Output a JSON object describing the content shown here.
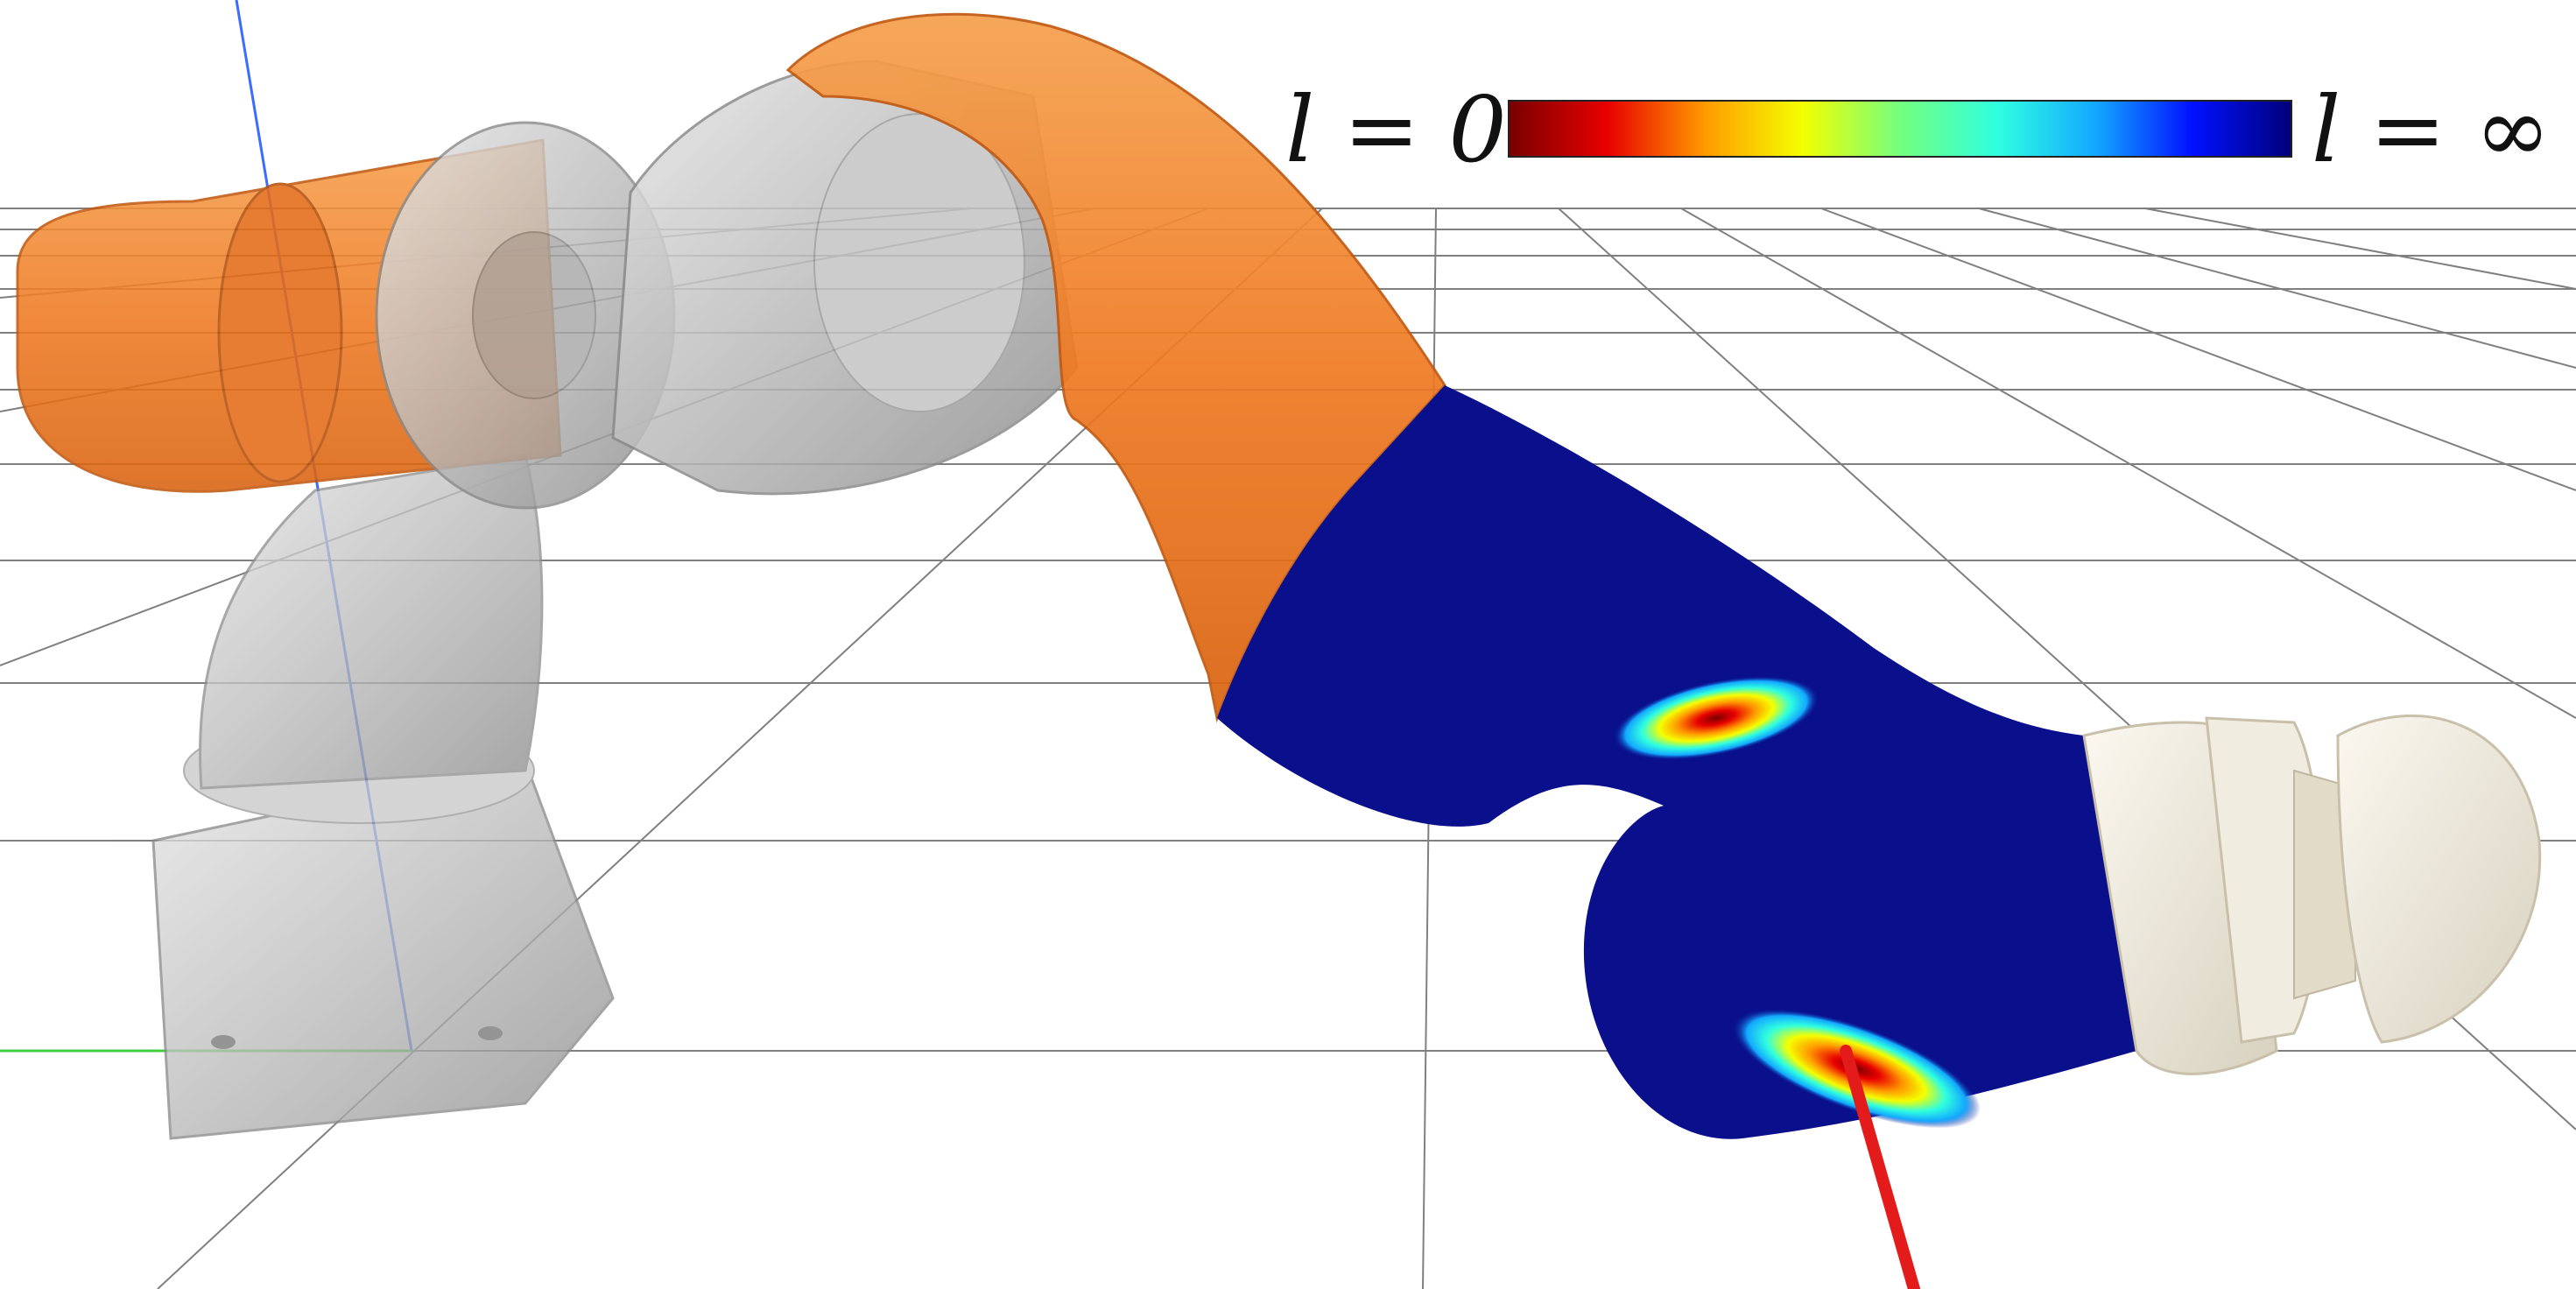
{
  "legend": {
    "min_label": "l = 0",
    "max_label": "l = ∞",
    "colormap": [
      "#7a0000",
      "#e80000",
      "#ff9a00",
      "#f4ff00",
      "#74ff7e",
      "#2fffe0",
      "#13a8ff",
      "#0010ff",
      "#00007a"
    ]
  },
  "colors": {
    "robot_orange": "#ef7a22",
    "robot_grey": "#a8a8a8",
    "robot_cream": "#ece6d8",
    "contact_low": "#0a0f8c",
    "force_ray": "#e31b1b",
    "grid": "#555555",
    "axis_z": "#3b6bff",
    "axis_y": "#40d040"
  },
  "scene_objects": [
    "ground-grid",
    "robot-base",
    "robot-shoulder",
    "robot-upper-arm",
    "robot-forearm",
    "robot-wrist",
    "robot-end-effector",
    "contact-hotspot",
    "force-ray"
  ]
}
